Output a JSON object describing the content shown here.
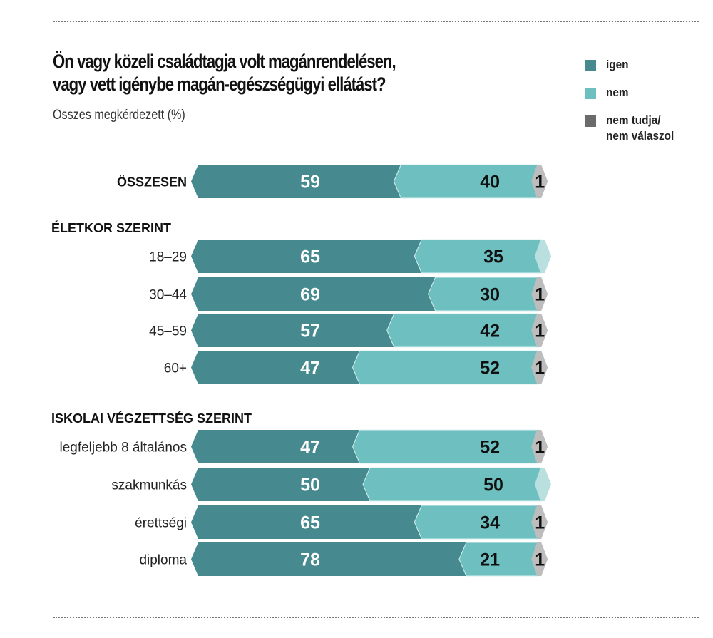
{
  "title_line1": "Ön vagy közeli családtagja volt magánrendelésen,",
  "title_line2": "vagy vett igénybe magán-egészségügyi ellátást?",
  "subtitle": "Összes megkérdezett (%)",
  "legend": [
    {
      "label": "igen",
      "color": "#468a8f"
    },
    {
      "label": "nem",
      "color": "#6dbfc0"
    },
    {
      "label_line1": "nem tudja/",
      "label_line2": "nem válaszol",
      "color": "#6b6b6b"
    }
  ],
  "colors": {
    "igen": "#468a8f",
    "nem": "#6dbfc0",
    "nt": "#bdbdbd",
    "nt_empty": "#b9dfdf"
  },
  "chart_data": {
    "type": "bar",
    "stacked": true,
    "orientation": "horizontal",
    "title": "Ön vagy közeli családtagja volt magánrendelésen, vagy vett igénybe magán-egészségügyi ellátást?",
    "subtitle": "Összes megkérdezett (%)",
    "legend_position": "top-right",
    "series_names": [
      "igen",
      "nem",
      "nem tudja/nem válaszol"
    ],
    "groups": [
      {
        "label": "",
        "rows": [
          {
            "label": "ÖSSZESEN",
            "igen": 59,
            "nem": 40,
            "nt": 1,
            "nt_label": "1"
          }
        ]
      },
      {
        "label": "ÉLETKOR SZERINT",
        "rows": [
          {
            "label": "18–29",
            "igen": 65,
            "nem": 35,
            "nt": 0,
            "nt_label": ""
          },
          {
            "label": "30–44",
            "igen": 69,
            "nem": 30,
            "nt": 1,
            "nt_label": "1"
          },
          {
            "label": "45–59",
            "igen": 57,
            "nem": 42,
            "nt": 1,
            "nt_label": "1"
          },
          {
            "label": "60+",
            "igen": 47,
            "nem": 52,
            "nt": 1,
            "nt_label": "1"
          }
        ]
      },
      {
        "label": "ISKOLAI VÉGZETTSÉG SZERINT",
        "rows": [
          {
            "label": "legfeljebb 8 általános",
            "igen": 47,
            "nem": 52,
            "nt": 1,
            "nt_label": "1"
          },
          {
            "label": "szakmunkás",
            "igen": 50,
            "nem": 50,
            "nt": 0,
            "nt_label": ""
          },
          {
            "label": "érettségi",
            "igen": 65,
            "nem": 34,
            "nt": 1,
            "nt_label": "1"
          },
          {
            "label": "diploma",
            "igen": 78,
            "nem": 21,
            "nt": 1,
            "nt_label": "1"
          }
        ]
      }
    ]
  }
}
